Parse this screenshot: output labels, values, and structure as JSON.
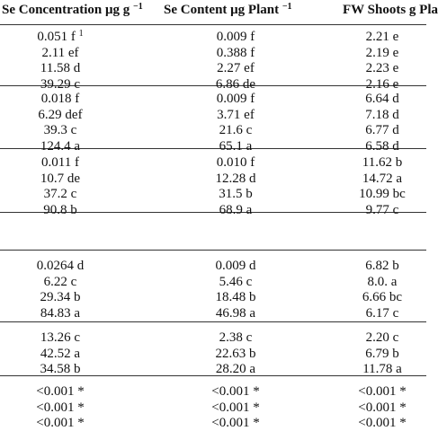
{
  "table": {
    "header": [
      {
        "text": "Se Concentration μg g",
        "sup": "−1"
      },
      {
        "text": "Se Content μg Plant",
        "sup": "−1"
      },
      {
        "text": "FW Shoots g Pla"
      }
    ],
    "groups": [
      [
        [
          {
            "text": "0.051 f",
            "sup": "1"
          },
          "0.009 f",
          "2.21 e"
        ],
        [
          "2.11 ef",
          "0.388 f",
          "2.19 e"
        ],
        [
          "11.58 d",
          "2.27 ef",
          "2.23 e"
        ],
        [
          "39.29 c",
          "6.86 de",
          "2.16 e"
        ]
      ],
      [
        [
          "0.018 f",
          "0.009 f",
          "6.64 d"
        ],
        [
          "6.29 def",
          "3.71 ef",
          "7.18 d"
        ],
        [
          "39.3 c",
          "21.6 c",
          "6.77 d"
        ],
        [
          "124.4 a",
          "65.1 a",
          "6.58 d"
        ]
      ],
      [
        [
          "0.011 f",
          "0.010 f",
          "11.62 b"
        ],
        [
          "10.7 de",
          "12.28 d",
          "14.72 a"
        ],
        [
          "37.2 c",
          "31.5 b",
          "10.99 bc"
        ],
        [
          "90.8 b",
          "68.9 a",
          "9.77 c"
        ]
      ],
      [
        [
          "0.0264 d",
          "0.009 d",
          "6.82 b"
        ],
        [
          "6.22 c",
          "5.46 c",
          "8.0. a"
        ],
        [
          "29.34 b",
          "18.48 b",
          "6.66 bc"
        ],
        [
          "84.83 a",
          "46.98 a",
          "6.17 c"
        ]
      ],
      [
        [
          "13.26 c",
          "2.38 c",
          "2.20 c"
        ],
        [
          "42.52 a",
          "22.63 b",
          "6.79 b"
        ],
        [
          "34.58 b",
          "28.20 a",
          "11.78 a"
        ]
      ],
      [
        [
          "<0.001 *",
          "<0.001 *",
          "<0.001 *"
        ],
        [
          "<0.001 *",
          "<0.001 *",
          "<0.001 *"
        ],
        [
          "<0.001 *",
          "<0.001 *",
          "<0.001 *"
        ]
      ]
    ]
  }
}
